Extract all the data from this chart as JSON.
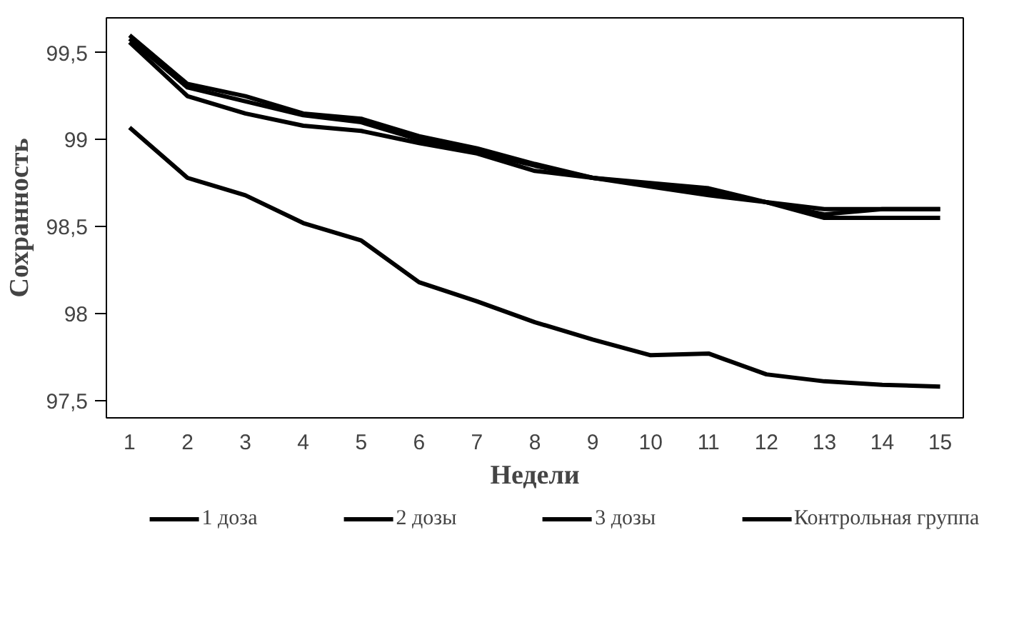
{
  "chart_data": {
    "type": "line",
    "xlabel": "Недели",
    "ylabel": "Сохранность",
    "x": [
      1,
      2,
      3,
      4,
      5,
      6,
      7,
      8,
      9,
      10,
      11,
      12,
      13,
      14,
      15
    ],
    "xlim": [
      0.6,
      15.4
    ],
    "xticks": [
      1,
      2,
      3,
      4,
      5,
      6,
      7,
      8,
      9,
      10,
      11,
      12,
      13,
      14,
      15
    ],
    "ylim": [
      97.4,
      99.7
    ],
    "yticks": [
      {
        "value": 97.5,
        "label": "97,5"
      },
      {
        "value": 98,
        "label": "98"
      },
      {
        "value": 98.5,
        "label": "98,5"
      },
      {
        "value": 99,
        "label": "99"
      },
      {
        "value": 99.5,
        "label": "99,5"
      }
    ],
    "series": [
      {
        "name": "1 доза",
        "color": "#000000",
        "values": [
          99.6,
          99.32,
          99.25,
          99.15,
          99.12,
          99.02,
          98.95,
          98.86,
          98.78,
          98.75,
          98.72,
          98.64,
          98.6,
          98.6,
          98.6
        ]
      },
      {
        "name": "2 дозы",
        "color": "#000000",
        "values": [
          99.58,
          99.3,
          99.22,
          99.14,
          99.1,
          99.0,
          98.93,
          98.85,
          98.78,
          98.74,
          98.7,
          98.64,
          98.57,
          98.6,
          98.6
        ]
      },
      {
        "name": "3 дозы",
        "color": "#000000",
        "values": [
          99.56,
          99.25,
          99.15,
          99.08,
          99.05,
          98.98,
          98.92,
          98.82,
          98.78,
          98.73,
          98.68,
          98.64,
          98.55,
          98.55,
          98.55
        ]
      },
      {
        "name": "Контрольная группа",
        "color": "#000000",
        "values": [
          99.07,
          98.78,
          98.68,
          98.52,
          98.42,
          98.18,
          98.07,
          97.95,
          97.85,
          97.76,
          97.77,
          97.65,
          97.61,
          97.59,
          97.58
        ]
      }
    ],
    "grid": false,
    "legend": "bottom",
    "marker": "none",
    "line_style": "solid"
  }
}
